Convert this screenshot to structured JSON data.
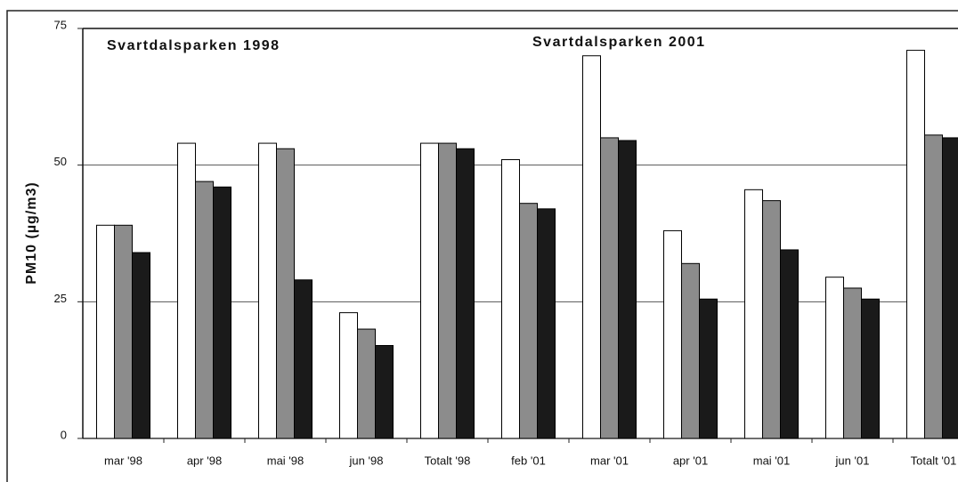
{
  "chart_data": {
    "type": "bar",
    "annotations": [
      "Svartdalsparken 1998",
      "Svartdalsparken 2001"
    ],
    "y_label": "PM10 (µg/m3)",
    "categories": [
      "mar '98",
      "apr '98",
      "mai '98",
      "jun '98",
      "Totalt '98",
      "feb '01",
      "mar '01",
      "apr '01",
      "mai '01",
      "jun '01",
      "Totalt '01"
    ],
    "series": [
      {
        "color": "#ffffff",
        "values": [
          39,
          54,
          54,
          23,
          54,
          51,
          70,
          38,
          45.5,
          29.5,
          71
        ]
      },
      {
        "color": "#8c8c8c",
        "values": [
          39,
          47,
          53,
          20,
          54,
          43,
          55,
          32,
          43.5,
          27.5,
          55.5
        ]
      },
      {
        "color": "#1a1a1a",
        "values": [
          34,
          46,
          29,
          17,
          53,
          42,
          54.5,
          25.5,
          34.5,
          25.5,
          55
        ]
      }
    ],
    "ylim": [
      0,
      75
    ],
    "yticks": [
      0,
      25,
      50,
      75
    ],
    "grid": true
  }
}
